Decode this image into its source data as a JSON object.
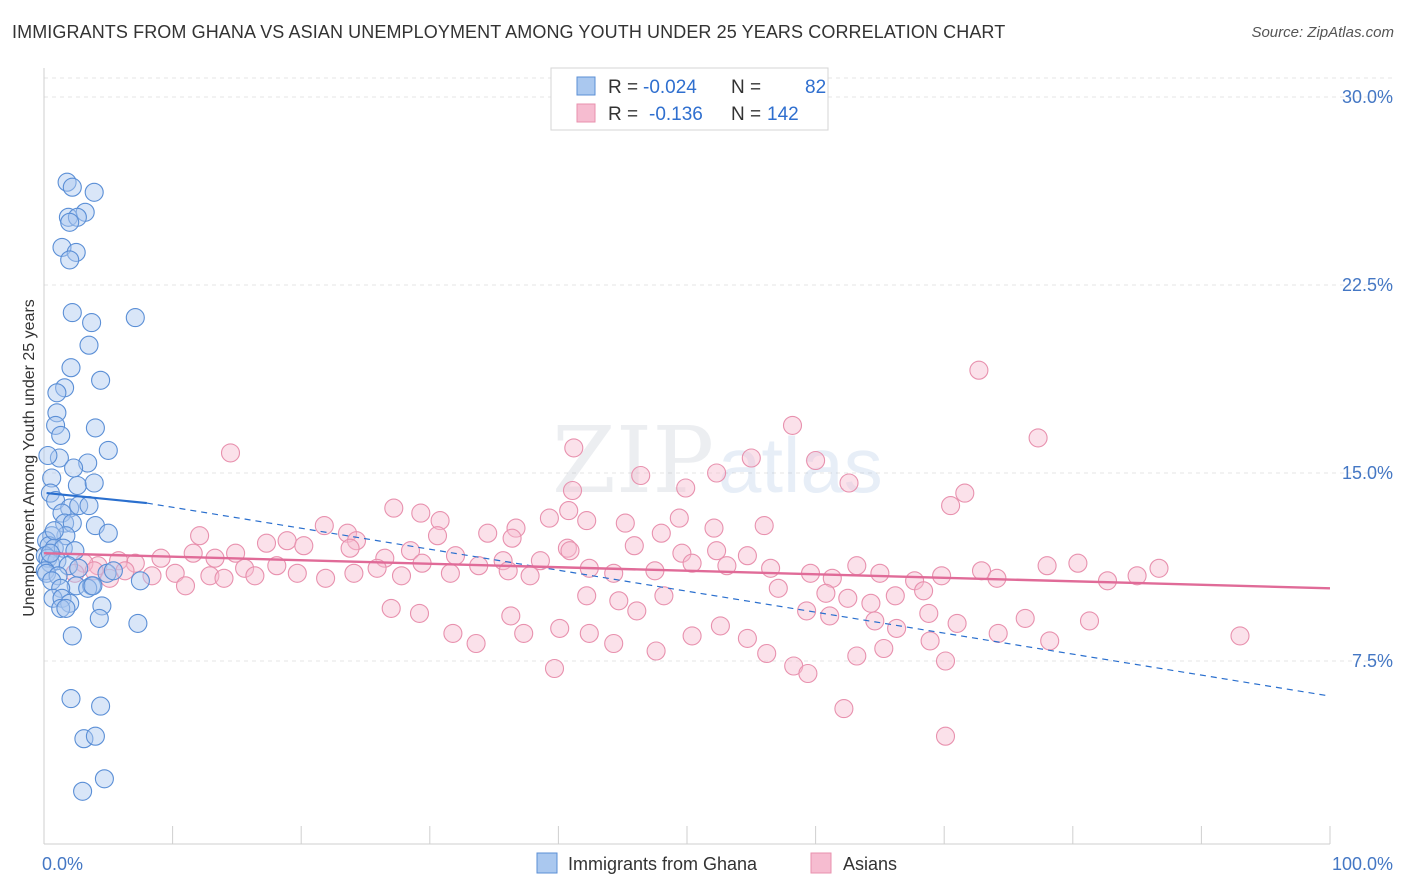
{
  "title": "IMMIGRANTS FROM GHANA VS ASIAN UNEMPLOYMENT AMONG YOUTH UNDER 25 YEARS CORRELATION CHART",
  "source": "Source: ZipAtlas.com",
  "watermark": {
    "zip": "ZIP",
    "atlas": "atlas"
  },
  "colors": {
    "blue_fill": "#aac8ef",
    "blue_stroke": "#5b8fd6",
    "blue_line": "#2a6fce",
    "pink_fill": "#f6bcd0",
    "pink_stroke": "#e891ae",
    "pink_line": "#e06b98",
    "grid": "#e4e4e4",
    "axis_text": "#4477c4",
    "value_text": "#2f6fcf"
  },
  "legend": {
    "rows": [
      {
        "r_label": "R =",
        "r_value": "-0.024",
        "n_label": "N =",
        "n_value": "82"
      },
      {
        "r_label": "R =",
        "r_value": "-0.136",
        "n_label": "N =",
        "n_value": "142"
      }
    ]
  },
  "chart_data": {
    "type": "scatter",
    "title": "IMMIGRANTS FROM GHANA VS ASIAN UNEMPLOYMENT AMONG YOUTH UNDER 25 YEARS CORRELATION CHART",
    "xlabel": "",
    "ylabel": "Unemployment Among Youth under 25 years",
    "xlim": [
      0,
      100
    ],
    "ylim": [
      0,
      31
    ],
    "x_tick_labels": [
      {
        "value": 0,
        "label": "0.0%"
      },
      {
        "value": 100,
        "label": "100.0%"
      }
    ],
    "x_minor_ticks": [
      10,
      20,
      30,
      40,
      50,
      60,
      70,
      80,
      90,
      100
    ],
    "y_ticks": [
      {
        "value": 7.5,
        "label": "7.5%"
      },
      {
        "value": 15,
        "label": "15.0%"
      },
      {
        "value": 22.5,
        "label": "22.5%"
      },
      {
        "value": 30,
        "label": "30.0%"
      }
    ],
    "grid": true,
    "legend_position": "top-center",
    "series": [
      {
        "name": "Immigrants from Ghana",
        "color": "#aac8ef",
        "r": -0.024,
        "n": 82,
        "trend_solid": [
          [
            0.2,
            14.2
          ],
          [
            8.0,
            13.8
          ]
        ],
        "trend_dashed": [
          [
            8.0,
            13.8
          ],
          [
            100,
            6.1
          ]
        ],
        "points": [
          [
            1.8,
            26.6
          ],
          [
            2.2,
            26.4
          ],
          [
            3.9,
            26.2
          ],
          [
            1.9,
            25.2
          ],
          [
            3.2,
            25.4
          ],
          [
            2.6,
            25.2
          ],
          [
            2.0,
            25.0
          ],
          [
            1.4,
            24.0
          ],
          [
            2.5,
            23.8
          ],
          [
            2.0,
            23.5
          ],
          [
            2.2,
            21.4
          ],
          [
            3.7,
            21.0
          ],
          [
            7.1,
            21.2
          ],
          [
            3.5,
            20.1
          ],
          [
            2.1,
            19.2
          ],
          [
            4.4,
            18.7
          ],
          [
            1.6,
            18.4
          ],
          [
            1.0,
            18.2
          ],
          [
            1.0,
            17.4
          ],
          [
            0.9,
            16.9
          ],
          [
            4.0,
            16.8
          ],
          [
            1.3,
            16.5
          ],
          [
            5.0,
            15.9
          ],
          [
            1.2,
            15.6
          ],
          [
            0.3,
            15.7
          ],
          [
            3.4,
            15.4
          ],
          [
            2.3,
            15.2
          ],
          [
            0.6,
            14.8
          ],
          [
            2.6,
            14.5
          ],
          [
            3.9,
            14.6
          ],
          [
            0.5,
            14.2
          ],
          [
            0.9,
            13.9
          ],
          [
            2.0,
            13.6
          ],
          [
            2.7,
            13.7
          ],
          [
            3.5,
            13.7
          ],
          [
            1.4,
            13.4
          ],
          [
            1.6,
            13.0
          ],
          [
            2.2,
            13.0
          ],
          [
            4.0,
            12.9
          ],
          [
            5.0,
            12.6
          ],
          [
            1.7,
            12.5
          ],
          [
            0.6,
            12.5
          ],
          [
            0.2,
            12.3
          ],
          [
            0.4,
            12.1
          ],
          [
            0.8,
            12.0
          ],
          [
            1.5,
            12.0
          ],
          [
            2.4,
            11.9
          ],
          [
            0.1,
            11.7
          ],
          [
            0.3,
            11.6
          ],
          [
            0.5,
            11.4
          ],
          [
            1.0,
            11.5
          ],
          [
            1.9,
            11.3
          ],
          [
            2.7,
            11.2
          ],
          [
            0.1,
            11.1
          ],
          [
            0.2,
            11.0
          ],
          [
            1.1,
            10.9
          ],
          [
            4.9,
            11.0
          ],
          [
            0.6,
            10.7
          ],
          [
            2.5,
            10.5
          ],
          [
            1.3,
            10.4
          ],
          [
            3.7,
            10.5
          ],
          [
            7.5,
            10.7
          ],
          [
            3.4,
            10.4
          ],
          [
            0.7,
            10.0
          ],
          [
            1.4,
            10.0
          ],
          [
            2.0,
            9.8
          ],
          [
            4.5,
            9.7
          ],
          [
            1.3,
            9.6
          ],
          [
            1.7,
            9.6
          ],
          [
            4.3,
            9.2
          ],
          [
            7.3,
            9.0
          ],
          [
            2.2,
            8.5
          ],
          [
            2.1,
            6.0
          ],
          [
            4.4,
            5.7
          ],
          [
            3.1,
            4.4
          ],
          [
            4.0,
            4.5
          ],
          [
            4.7,
            2.8
          ],
          [
            3.0,
            2.3
          ],
          [
            0.5,
            11.8
          ],
          [
            0.8,
            12.7
          ],
          [
            3.8,
            10.5
          ],
          [
            5.4,
            11.1
          ]
        ]
      },
      {
        "name": "Asians",
        "color": "#f6bcd0",
        "r": -0.136,
        "n": 142,
        "trend_solid": [
          [
            0,
            11.8
          ],
          [
            100,
            10.4
          ]
        ],
        "points": [
          [
            72.7,
            19.1
          ],
          [
            58.2,
            16.9
          ],
          [
            77.3,
            16.4
          ],
          [
            14.5,
            15.8
          ],
          [
            41.2,
            16.0
          ],
          [
            60.0,
            15.5
          ],
          [
            55.0,
            15.6
          ],
          [
            46.4,
            14.9
          ],
          [
            62.6,
            14.6
          ],
          [
            71.6,
            14.2
          ],
          [
            41.1,
            14.3
          ],
          [
            49.9,
            14.4
          ],
          [
            70.5,
            13.7
          ],
          [
            27.2,
            13.6
          ],
          [
            29.3,
            13.4
          ],
          [
            30.8,
            13.1
          ],
          [
            39.3,
            13.2
          ],
          [
            40.8,
            13.5
          ],
          [
            42.2,
            13.1
          ],
          [
            45.2,
            13.0
          ],
          [
            49.4,
            13.2
          ],
          [
            52.1,
            12.8
          ],
          [
            56.0,
            12.9
          ],
          [
            34.5,
            12.6
          ],
          [
            36.7,
            12.8
          ],
          [
            21.8,
            12.9
          ],
          [
            23.6,
            12.6
          ],
          [
            24.3,
            12.3
          ],
          [
            12.1,
            12.5
          ],
          [
            18.9,
            12.3
          ],
          [
            30.6,
            12.5
          ],
          [
            36.4,
            12.4
          ],
          [
            48.0,
            12.6
          ],
          [
            40.7,
            12.0
          ],
          [
            45.9,
            12.1
          ],
          [
            52.3,
            11.9
          ],
          [
            49.6,
            11.8
          ],
          [
            54.7,
            11.7
          ],
          [
            40.9,
            11.9
          ],
          [
            38.6,
            11.5
          ],
          [
            35.7,
            11.5
          ],
          [
            32.0,
            11.7
          ],
          [
            28.5,
            11.9
          ],
          [
            26.5,
            11.6
          ],
          [
            23.8,
            12.0
          ],
          [
            20.2,
            12.1
          ],
          [
            17.3,
            12.2
          ],
          [
            14.9,
            11.8
          ],
          [
            13.3,
            11.6
          ],
          [
            11.6,
            11.8
          ],
          [
            9.1,
            11.6
          ],
          [
            7.1,
            11.4
          ],
          [
            5.8,
            11.5
          ],
          [
            4.2,
            11.3
          ],
          [
            3.1,
            11.4
          ],
          [
            2.4,
            11.0
          ],
          [
            3.9,
            11.1
          ],
          [
            5.1,
            10.8
          ],
          [
            6.3,
            11.1
          ],
          [
            8.4,
            10.9
          ],
          [
            10.2,
            11.0
          ],
          [
            11.0,
            10.5
          ],
          [
            12.9,
            10.9
          ],
          [
            14.0,
            10.8
          ],
          [
            15.6,
            11.2
          ],
          [
            16.4,
            10.9
          ],
          [
            18.1,
            11.3
          ],
          [
            19.7,
            11.0
          ],
          [
            21.9,
            10.8
          ],
          [
            24.1,
            11.0
          ],
          [
            25.9,
            11.2
          ],
          [
            27.8,
            10.9
          ],
          [
            29.4,
            11.4
          ],
          [
            31.6,
            11.0
          ],
          [
            33.8,
            11.3
          ],
          [
            36.1,
            11.1
          ],
          [
            37.8,
            10.9
          ],
          [
            42.4,
            11.2
          ],
          [
            44.3,
            11.0
          ],
          [
            47.5,
            11.1
          ],
          [
            50.4,
            11.4
          ],
          [
            53.1,
            11.3
          ],
          [
            56.5,
            11.2
          ],
          [
            59.6,
            11.0
          ],
          [
            61.3,
            10.8
          ],
          [
            63.2,
            11.3
          ],
          [
            65.0,
            11.0
          ],
          [
            67.7,
            10.7
          ],
          [
            69.8,
            10.9
          ],
          [
            72.9,
            11.1
          ],
          [
            74.1,
            10.8
          ],
          [
            78.0,
            11.3
          ],
          [
            80.4,
            11.4
          ],
          [
            82.7,
            10.7
          ],
          [
            85.0,
            10.9
          ],
          [
            86.7,
            11.2
          ],
          [
            57.1,
            10.4
          ],
          [
            60.8,
            10.2
          ],
          [
            62.5,
            10.0
          ],
          [
            64.3,
            9.8
          ],
          [
            66.2,
            10.1
          ],
          [
            68.4,
            10.3
          ],
          [
            59.3,
            9.5
          ],
          [
            61.1,
            9.3
          ],
          [
            64.6,
            9.1
          ],
          [
            66.3,
            8.8
          ],
          [
            68.8,
            9.4
          ],
          [
            71.0,
            9.0
          ],
          [
            74.2,
            8.6
          ],
          [
            76.3,
            9.2
          ],
          [
            78.2,
            8.3
          ],
          [
            81.3,
            9.1
          ],
          [
            48.2,
            10.1
          ],
          [
            46.1,
            9.5
          ],
          [
            44.7,
            9.9
          ],
          [
            42.2,
            10.1
          ],
          [
            40.1,
            8.8
          ],
          [
            37.3,
            8.6
          ],
          [
            36.3,
            9.3
          ],
          [
            31.8,
            8.6
          ],
          [
            29.2,
            9.4
          ],
          [
            27.0,
            9.6
          ],
          [
            50.4,
            8.5
          ],
          [
            52.6,
            8.9
          ],
          [
            54.7,
            8.4
          ],
          [
            56.2,
            7.8
          ],
          [
            58.3,
            7.3
          ],
          [
            63.2,
            7.7
          ],
          [
            65.3,
            8.0
          ],
          [
            70.1,
            7.5
          ],
          [
            47.6,
            7.9
          ],
          [
            44.3,
            8.2
          ],
          [
            42.4,
            8.6
          ],
          [
            39.7,
            7.2
          ],
          [
            33.6,
            8.2
          ],
          [
            59.4,
            7.0
          ],
          [
            62.2,
            5.6
          ],
          [
            68.9,
            8.3
          ],
          [
            70.1,
            4.5
          ],
          [
            93.0,
            8.5
          ],
          [
            52.3,
            15.0
          ]
        ]
      }
    ]
  },
  "x_axis_labels": {
    "left": "0.0%",
    "right": "100.0%"
  },
  "bottom_legend": [
    {
      "label": "Immigrants from Ghana"
    },
    {
      "label": "Asians"
    }
  ]
}
